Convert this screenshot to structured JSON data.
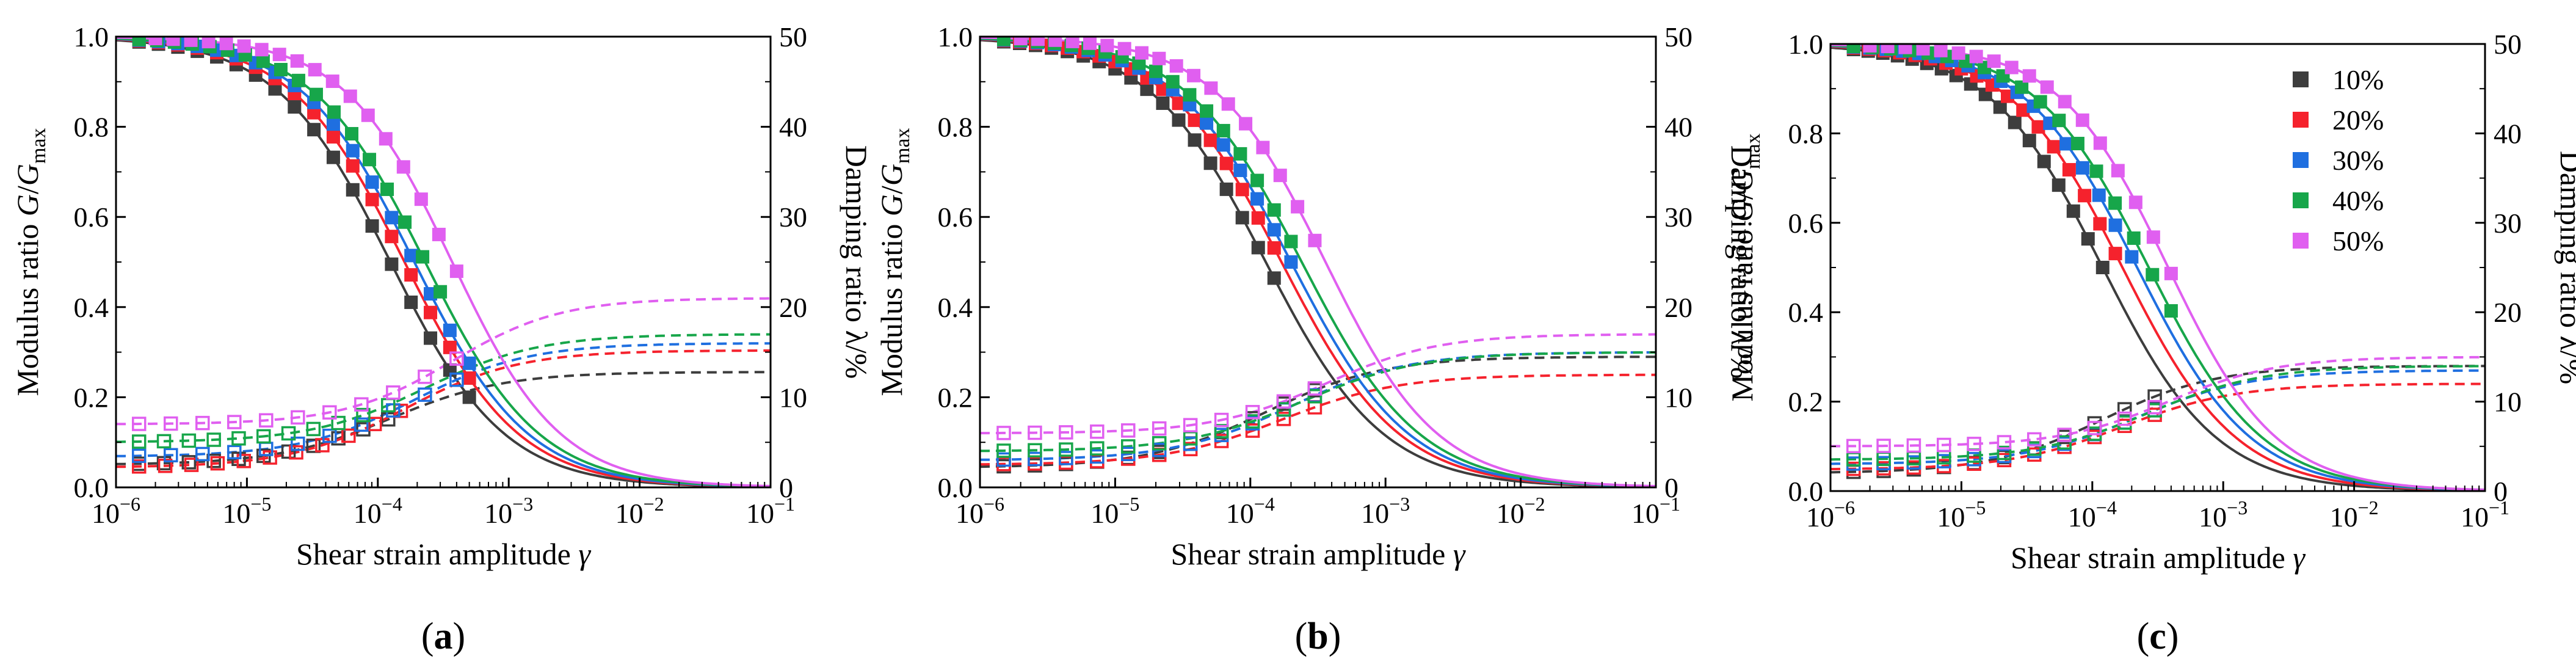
{
  "colors": {
    "10%": "#3d3d3d",
    "20%": "#f5222d",
    "30%": "#1f6fe0",
    "40%": "#17a64a",
    "50%": "#e05ff0"
  },
  "legend": {
    "placement": "top-right",
    "panel": 2,
    "entries": [
      "10%",
      "20%",
      "30%",
      "40%",
      "50%"
    ]
  },
  "chart_data": [
    {
      "type": "scatter",
      "panel_label": "(a)",
      "panel_letter": "a",
      "xlabel": "Shear strain amplitude γ",
      "ylabel_left": "Modulus ratio G/Gmax",
      "ylabel_right": "Damping ratio λ/%",
      "x_scale": "log",
      "xlim": [
        1e-06,
        0.1
      ],
      "ylim_left": [
        0,
        1.0
      ],
      "ylim_right": [
        0,
        50
      ],
      "x_ticks": [
        "10^-6",
        "10^-5",
        "10^-4",
        "10^-3",
        "10^-2",
        "10^-1"
      ],
      "y_ticks_left": [
        "0.0",
        "0.2",
        "0.4",
        "0.6",
        "0.8",
        "1.0"
      ],
      "y_ticks_right": [
        "0",
        "10",
        "20",
        "30",
        "40",
        "50"
      ],
      "grid": false,
      "series": [
        {
          "name": "10%",
          "gamma_ref": 0.000125,
          "alpha": 1.0,
          "gamma_range": [
            1.5e-06,
            0.0005
          ],
          "damping_min": 2.5,
          "damping_max": 12.8,
          "damping_range": [
            1.5e-06,
            0.00012
          ]
        },
        {
          "name": "20%",
          "gamma_ref": 0.00016,
          "alpha": 1.0,
          "gamma_range": [
            1.5e-06,
            0.0005
          ],
          "damping_min": 2.2,
          "damping_max": 15.2,
          "damping_range": [
            1.5e-06,
            0.00015
          ]
        },
        {
          "name": "30%",
          "gamma_ref": 0.00019,
          "alpha": 1.0,
          "gamma_range": [
            1.5e-06,
            0.0005
          ],
          "damping_min": 3.4,
          "damping_max": 16.0,
          "damping_range": [
            1.5e-06,
            0.0004
          ]
        },
        {
          "name": "40%",
          "gamma_ref": 0.00023,
          "alpha": 1.0,
          "gamma_range": [
            1.5e-06,
            0.0003
          ],
          "damping_min": 5.0,
          "damping_max": 17.0,
          "damping_range": [
            1.5e-06,
            0.00012
          ]
        },
        {
          "name": "50%",
          "gamma_ref": 0.00037,
          "alpha": 1.05,
          "gamma_range": [
            2e-06,
            0.0004
          ],
          "damping_min": 7.0,
          "damping_max": 21.0,
          "damping_range": [
            1.5e-06,
            0.0004
          ]
        }
      ]
    },
    {
      "type": "scatter",
      "panel_label": "(b)",
      "panel_letter": "b",
      "xlabel": "Shear strain amplitude γ",
      "ylabel_left": "Modulus ratio G/Gmax",
      "ylabel_right": "Damping ratio λ/%",
      "x_scale": "log",
      "xlim": [
        1e-06,
        0.1
      ],
      "ylim_left": [
        0,
        1.0
      ],
      "ylim_right": [
        0,
        50
      ],
      "x_ticks": [
        "10^-6",
        "10^-5",
        "10^-4",
        "10^-3",
        "10^-2",
        "10^-1"
      ],
      "y_ticks_left": [
        "0.0",
        "0.2",
        "0.4",
        "0.6",
        "0.8",
        "1.0"
      ],
      "y_ticks_right": [
        "0",
        "10",
        "20",
        "30",
        "40",
        "50"
      ],
      "grid": false,
      "series": [
        {
          "name": "10%",
          "gamma_ref": 0.00013,
          "alpha": 1.0,
          "gamma_range": [
            1.5e-06,
            0.00015
          ],
          "damping_min": 2.2,
          "damping_max": 14.5,
          "damping_range": [
            1.5e-06,
            0.0003
          ]
        },
        {
          "name": "20%",
          "gamma_ref": 0.00017,
          "alpha": 1.0,
          "gamma_range": [
            1.5e-06,
            0.00015
          ],
          "damping_min": 2.5,
          "damping_max": 12.5,
          "damping_range": [
            1.5e-06,
            0.0003
          ]
        },
        {
          "name": "30%",
          "gamma_ref": 0.0002,
          "alpha": 1.0,
          "gamma_range": [
            1.5e-06,
            0.0002
          ],
          "damping_min": 3.0,
          "damping_max": 15.0,
          "damping_range": [
            1.5e-06,
            0.0003
          ]
        },
        {
          "name": "40%",
          "gamma_ref": 0.00024,
          "alpha": 1.0,
          "gamma_range": [
            1.5e-06,
            0.0002
          ],
          "damping_min": 4.0,
          "damping_max": 15.0,
          "damping_range": [
            1.5e-06,
            0.0003
          ]
        },
        {
          "name": "50%",
          "gamma_ref": 0.00036,
          "alpha": 1.05,
          "gamma_range": [
            2e-06,
            0.0003
          ],
          "damping_min": 6.0,
          "damping_max": 17.0,
          "damping_range": [
            1.5e-06,
            0.0003
          ]
        }
      ]
    },
    {
      "type": "scatter",
      "panel_label": "(c)",
      "panel_letter": "c",
      "xlabel": "Shear strain amplitude γ",
      "ylabel_left": "Modulus ratio G/Gmax",
      "ylabel_right": "Damping ratio λ/%",
      "x_scale": "log",
      "xlim": [
        1e-06,
        0.1
      ],
      "ylim_left": [
        0,
        1.0
      ],
      "ylim_right": [
        0,
        50
      ],
      "x_ticks": [
        "10^-6",
        "10^-5",
        "10^-4",
        "10^-3",
        "10^-2",
        "10^-1"
      ],
      "y_ticks_left": [
        "0.0",
        "0.2",
        "0.4",
        "0.6",
        "0.8",
        "1.0"
      ],
      "y_ticks_right": [
        "0",
        "10",
        "20",
        "30",
        "40",
        "50"
      ],
      "grid": false,
      "series": [
        {
          "name": "10%",
          "gamma_ref": 0.00012,
          "alpha": 1.0,
          "gamma_range": [
            1.5e-06,
            0.00012
          ],
          "damping_min": 2.0,
          "damping_max": 14.0,
          "damping_range": [
            1.5e-06,
            0.0003
          ]
        },
        {
          "name": "20%",
          "gamma_ref": 0.00017,
          "alpha": 1.0,
          "gamma_range": [
            1.5e-06,
            0.00015
          ],
          "damping_min": 2.4,
          "damping_max": 12.0,
          "damping_range": [
            1.5e-06,
            0.0003
          ]
        },
        {
          "name": "30%",
          "gamma_ref": 0.00022,
          "alpha": 1.0,
          "gamma_range": [
            1.5e-06,
            0.0002
          ],
          "damping_min": 3.0,
          "damping_max": 13.5,
          "damping_range": [
            1.5e-06,
            0.0003
          ]
        },
        {
          "name": "40%",
          "gamma_ref": 0.00027,
          "alpha": 1.0,
          "gamma_range": [
            1.5e-06,
            0.0004
          ],
          "damping_min": 3.5,
          "damping_max": 14.0,
          "damping_range": [
            1.5e-06,
            0.0003
          ]
        },
        {
          "name": "50%",
          "gamma_ref": 0.00038,
          "alpha": 1.05,
          "gamma_range": [
            2e-06,
            0.0004
          ],
          "damping_min": 5.0,
          "damping_max": 15.0,
          "damping_range": [
            1.5e-06,
            0.0003
          ]
        }
      ]
    }
  ]
}
